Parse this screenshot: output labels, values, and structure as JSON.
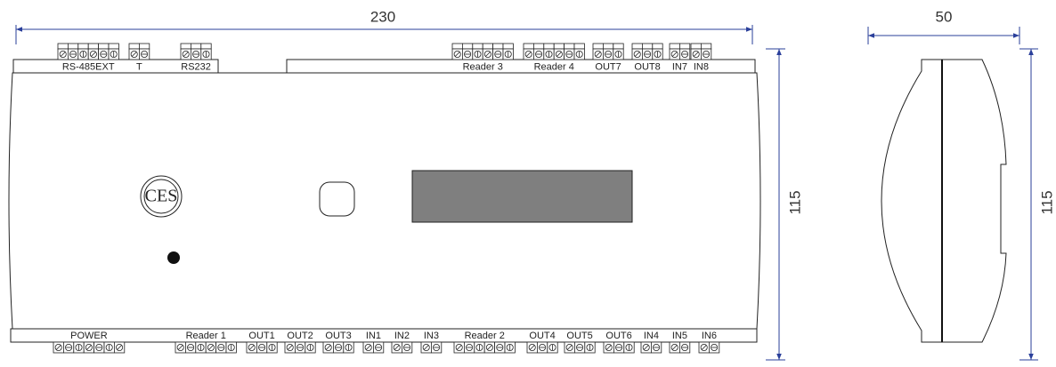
{
  "dimensions": {
    "front_width": "230",
    "front_height": "115",
    "side_width": "50",
    "side_height": "115"
  },
  "logo": "CES",
  "top_connectors": [
    {
      "label": "RS-485EXT"
    },
    {
      "label": "T"
    },
    {
      "label": "RS232"
    },
    {
      "label": "Reader 3"
    },
    {
      "label": "Reader 4"
    },
    {
      "label": "OUT7"
    },
    {
      "label": "OUT8"
    },
    {
      "label": "IN7"
    },
    {
      "label": "IN8"
    }
  ],
  "bottom_connectors": [
    {
      "label": "POWER"
    },
    {
      "label": "Reader 1"
    },
    {
      "label": "OUT1"
    },
    {
      "label": "OUT2"
    },
    {
      "label": "OUT3"
    },
    {
      "label": "IN1"
    },
    {
      "label": "IN2"
    },
    {
      "label": "IN3"
    },
    {
      "label": "Reader 2"
    },
    {
      "label": "OUT4"
    },
    {
      "label": "OUT5"
    },
    {
      "label": "OUT6"
    },
    {
      "label": "IN4"
    },
    {
      "label": "IN5"
    },
    {
      "label": "IN6"
    }
  ]
}
